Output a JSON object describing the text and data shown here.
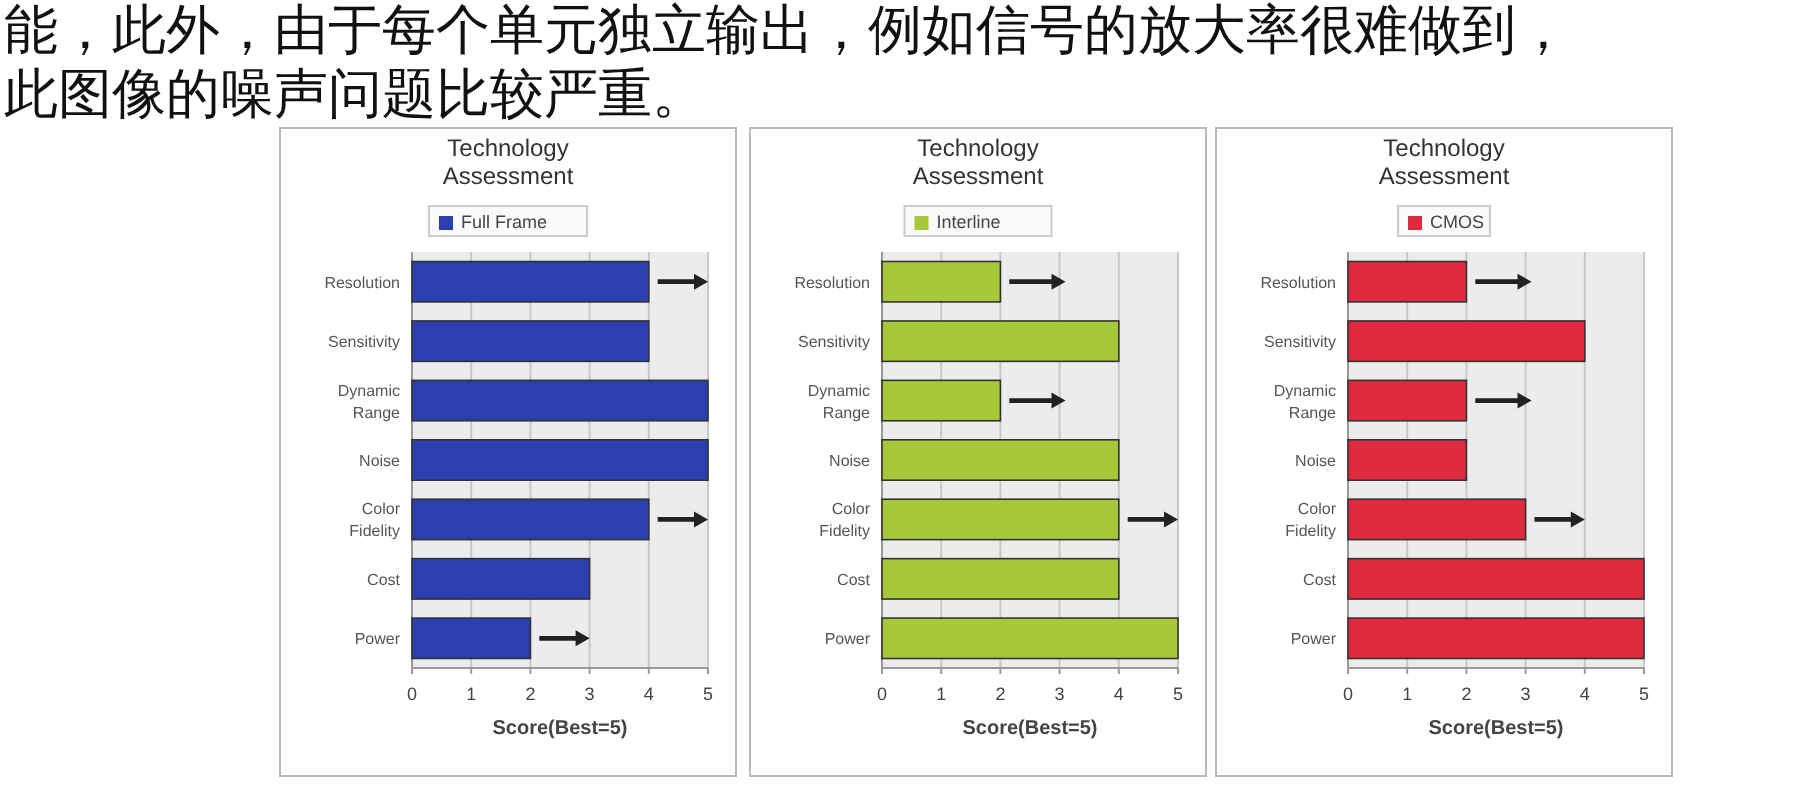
{
  "chart_data": [
    {
      "type": "other",
      "annotations": [
        "能，此外，由于每个单元独立输出，例如信号的放大率很难做到，",
        "此图像的噪声问题比较严重。"
      ]
    },
    {
      "type": "bar",
      "orientation": "horizontal",
      "title": "Technology Assessment",
      "xlabel": "Score(Best=5)",
      "categories": [
        "Resolution",
        "Sensitivity",
        "Dynamic Range",
        "Noise",
        "Color Fidelity",
        "Cost",
        "Power"
      ],
      "series": [
        {
          "name": "Full Frame",
          "color": "#2b3fb0",
          "values": [
            4,
            4,
            5,
            5,
            4,
            3,
            2
          ]
        }
      ],
      "xlim": [
        0,
        5
      ],
      "xticks": [
        0,
        1,
        2,
        3,
        4,
        5
      ],
      "grid": "x",
      "legend": "top"
    },
    {
      "type": "bar",
      "orientation": "horizontal",
      "title": "Technology Assessment",
      "xlabel": "Score(Best=5)",
      "categories": [
        "Resolution",
        "Sensitivity",
        "Dynamic Range",
        "Noise",
        "Color Fidelity",
        "Cost",
        "Power"
      ],
      "series": [
        {
          "name": "Interline",
          "color": "#a6c93a",
          "values": [
            2,
            4,
            2,
            4,
            4,
            4,
            5
          ]
        }
      ],
      "xlim": [
        0,
        5
      ],
      "xticks": [
        0,
        1,
        2,
        3,
        4,
        5
      ],
      "grid": "x",
      "legend": "top"
    },
    {
      "type": "bar",
      "orientation": "horizontal",
      "title": "Technology Assessment",
      "xlabel": "Score(Best=5)",
      "categories": [
        "Resolution",
        "Sensitivity",
        "Dynamic Range",
        "Noise",
        "Color Fidelity",
        "Cost",
        "Power"
      ],
      "series": [
        {
          "name": "CMOS",
          "color": "#df2a3e",
          "values": [
            2,
            4,
            2,
            2,
            3,
            5,
            5
          ]
        }
      ],
      "xlim": [
        0,
        5
      ],
      "xticks": [
        0,
        1,
        2,
        3,
        4,
        5
      ],
      "grid": "x",
      "legend": "top"
    }
  ]
}
